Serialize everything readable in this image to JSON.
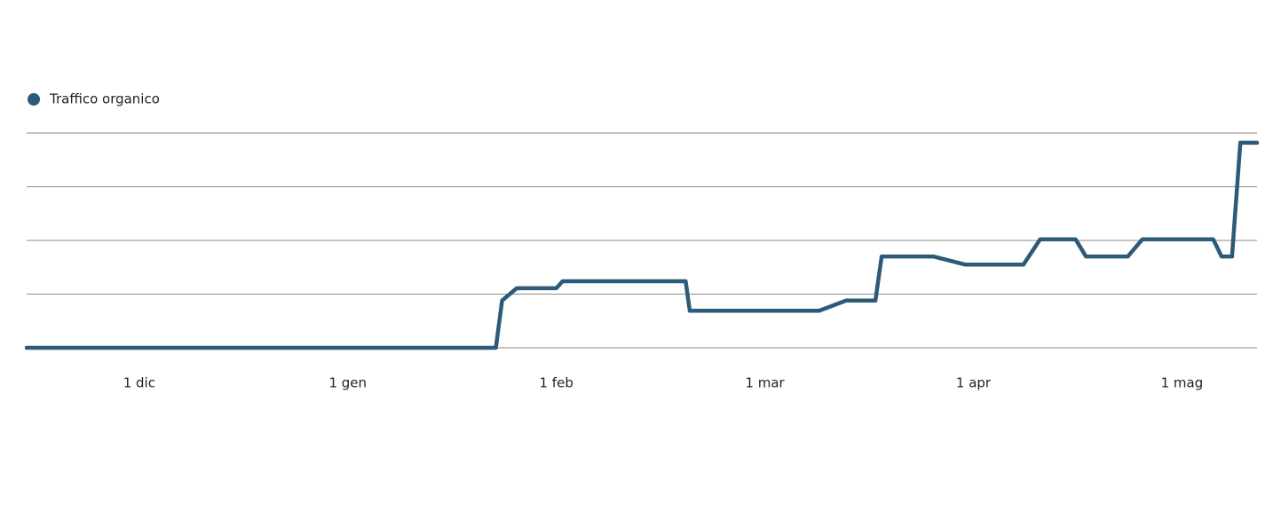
{
  "chart_data": {
    "type": "line",
    "x": [
      -0.54,
      1.71,
      1.74,
      1.81,
      2.0,
      2.03,
      2.62,
      2.64,
      3.26,
      3.39,
      3.53,
      3.56,
      3.81,
      3.96,
      4.24,
      4.32,
      4.49,
      4.54,
      4.74,
      4.81,
      5.15,
      5.19,
      5.24,
      5.28,
      5.36
    ],
    "series": [
      {
        "name": "Traffico organico",
        "color": "#2d5a78",
        "values": [
          0,
          0,
          0.88,
          1.11,
          1.11,
          1.24,
          1.24,
          0.69,
          0.69,
          0.88,
          0.88,
          1.7,
          1.7,
          1.55,
          1.55,
          2.02,
          2.02,
          1.7,
          1.7,
          2.02,
          2.02,
          1.7,
          1.7,
          3.82,
          3.82
        ]
      }
    ],
    "xlim": [
      -0.54,
      5.36
    ],
    "xticks": [
      {
        "value": 0,
        "label": "1 dic"
      },
      {
        "value": 1,
        "label": "1 gen"
      },
      {
        "value": 2,
        "label": "1 feb"
      },
      {
        "value": 3,
        "label": "1 mar"
      },
      {
        "value": 4,
        "label": "1 apr"
      },
      {
        "value": 5,
        "label": "1 mag"
      }
    ],
    "ylim": [
      0,
      4
    ],
    "yticks": [
      0,
      1,
      2,
      3,
      4
    ],
    "grid": true,
    "legend": "top-left"
  }
}
